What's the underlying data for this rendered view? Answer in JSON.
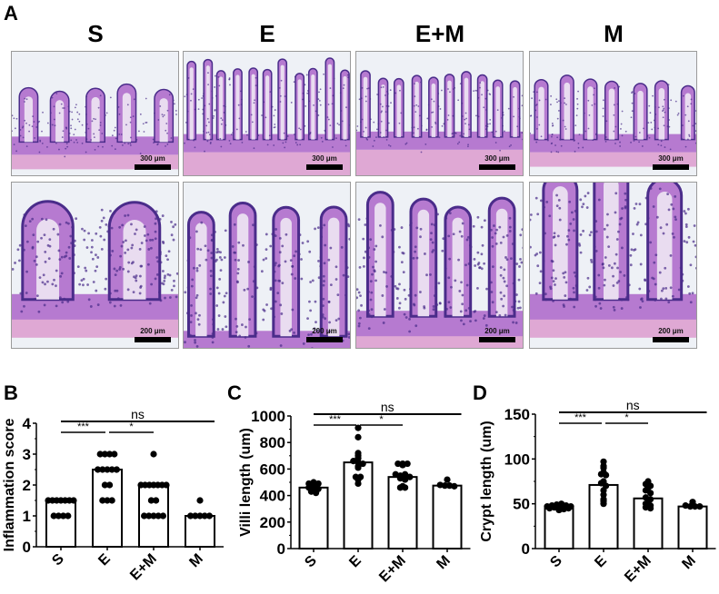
{
  "figure": {
    "panel_letters": {
      "a": "A",
      "b": "B",
      "c": "C",
      "d": "D"
    },
    "groups": [
      "S",
      "E",
      "E+M",
      "M"
    ],
    "histology": {
      "top_row_scale": "300 μm",
      "bottom_row_scale": "200 μm",
      "stain_colors": {
        "background": "#eef1f6",
        "tissue": "#b67ad0",
        "nuclei": "#4a2c8a",
        "muscle": "#d98fc8"
      }
    }
  },
  "chart_data": [
    {
      "type": "bar",
      "panel": "B",
      "title": "",
      "xlabel": "",
      "ylabel": "Inflammation score",
      "categories": [
        "S",
        "E",
        "E+M",
        "M"
      ],
      "values": [
        1.5,
        2.5,
        2.0,
        1.0
      ],
      "ylim": [
        0,
        4
      ],
      "yticks": [
        0,
        1,
        2,
        3,
        4
      ],
      "points": [
        [
          1.5,
          1.5,
          1.5,
          1.5,
          1.5,
          1.5,
          1.5,
          1,
          1,
          1,
          1
        ],
        [
          3,
          3,
          3,
          3,
          2.5,
          2.5,
          2.5,
          2.5,
          2.5,
          2,
          2,
          1.5,
          1.5,
          1.5
        ],
        [
          3,
          2,
          2,
          2,
          2,
          2,
          2,
          2,
          1.5,
          1.5,
          1,
          1,
          1,
          1,
          1
        ],
        [
          1.5,
          1,
          1,
          1,
          1,
          1
        ]
      ],
      "significance": [
        {
          "from": "S",
          "to": "M",
          "label": "ns"
        },
        {
          "from": "S",
          "to": "E",
          "label": "***"
        },
        {
          "from": "E",
          "to": "E+M",
          "label": "*"
        }
      ],
      "grid": false,
      "legend": null
    },
    {
      "type": "bar",
      "panel": "C",
      "title": "",
      "xlabel": "",
      "ylabel": "Villi length (um)",
      "categories": [
        "S",
        "E",
        "E+M",
        "M"
      ],
      "values": [
        460,
        650,
        540,
        475
      ],
      "ylim": [
        0,
        1000
      ],
      "yticks": [
        0,
        200,
        400,
        600,
        800,
        1000
      ],
      "points": [
        [
          460,
          470,
          490,
          500,
          490,
          440,
          470,
          430,
          450,
          420
        ],
        [
          910,
          840,
          720,
          700,
          680,
          660,
          650,
          640,
          620,
          610,
          540,
          540,
          520,
          490
        ],
        [
          640,
          630,
          640,
          640,
          560,
          550,
          560,
          540,
          530,
          520,
          470,
          460,
          460
        ],
        [
          520,
          480,
          475,
          475,
          470
        ]
      ],
      "significance": [
        {
          "from": "S",
          "to": "M",
          "label": "ns"
        },
        {
          "from": "S",
          "to": "E",
          "label": "***"
        },
        {
          "from": "E",
          "to": "E+M",
          "label": "*"
        }
      ],
      "grid": false,
      "legend": null
    },
    {
      "type": "bar",
      "panel": "D",
      "title": "",
      "xlabel": "",
      "ylabel": "Crypt length (um)",
      "categories": [
        "S",
        "E",
        "E+M",
        "M"
      ],
      "values": [
        46,
        71,
        56,
        47
      ],
      "ylim": [
        0,
        150
      ],
      "yticks": [
        0,
        50,
        100,
        150
      ],
      "points": [
        [
          45,
          46,
          47,
          48,
          49,
          50,
          48,
          47,
          46,
          44,
          43,
          45
        ],
        [
          97,
          92,
          90,
          85,
          83,
          82,
          75,
          73,
          70,
          65,
          60,
          55,
          53,
          50
        ],
        [
          75,
          72,
          70,
          68,
          65,
          62,
          57,
          55,
          52,
          50,
          48,
          46,
          45
        ],
        [
          52,
          48,
          47,
          47,
          47
        ]
      ],
      "significance": [
        {
          "from": "S",
          "to": "M",
          "label": "ns"
        },
        {
          "from": "S",
          "to": "E",
          "label": "***"
        },
        {
          "from": "E",
          "to": "E+M",
          "label": "*"
        }
      ],
      "grid": false,
      "legend": null
    }
  ]
}
